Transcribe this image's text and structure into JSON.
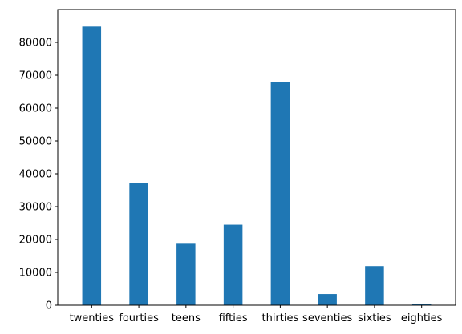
{
  "chart_data": {
    "type": "bar",
    "title": "",
    "xlabel": "",
    "ylabel": "",
    "categories": [
      "twenties",
      "fourties",
      "teens",
      "fifties",
      "thirties",
      "seventies",
      "sixties",
      "eighties"
    ],
    "values": [
      84800,
      37300,
      18700,
      24500,
      68000,
      3400,
      11900,
      300
    ],
    "ylim": [
      0,
      90000
    ],
    "yticks": [
      0,
      10000,
      20000,
      30000,
      40000,
      50000,
      60000,
      70000,
      80000
    ],
    "bar_color": "#1f77b4",
    "grid": false,
    "legend": false
  }
}
